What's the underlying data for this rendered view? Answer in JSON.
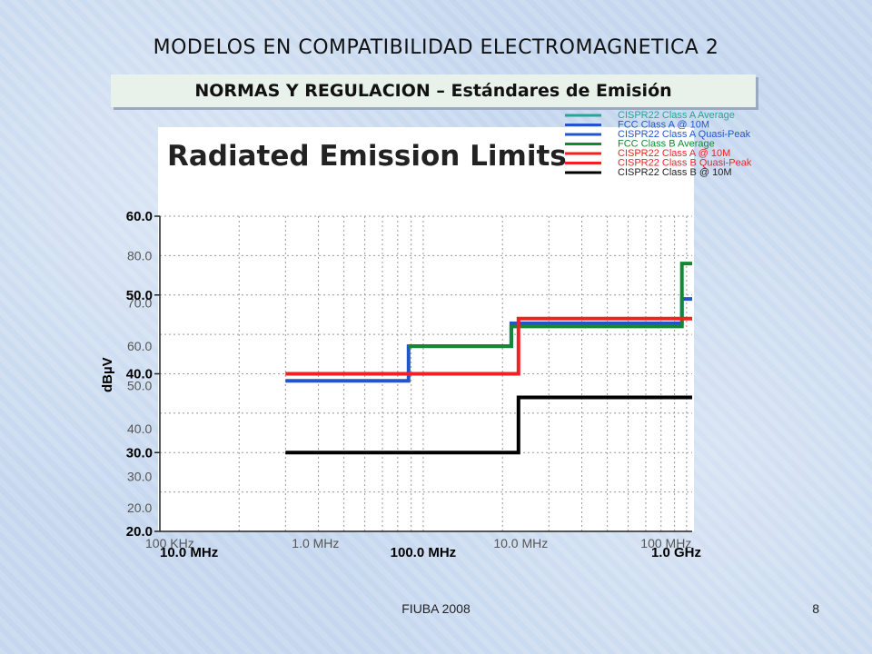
{
  "header": {
    "title": "MODELOS EN COMPATIBILIDAD ELECTROMAGNETICA  2",
    "subtitle": "NORMAS Y REGULACION – Estándares de Emisión"
  },
  "footer": {
    "left": "FIUBA 2008",
    "right": "8"
  },
  "chart_data": {
    "type": "line",
    "title": "Radiated Emission Limits",
    "xlabel": "",
    "ylabel": "dBµV",
    "x_scale": "log",
    "xlim": [
      10,
      1050
    ],
    "ylim": [
      20,
      60
    ],
    "x_ticks": [
      {
        "value": 10,
        "label": "10.0 MHz"
      },
      {
        "value": 100,
        "label": "100.0 MHz"
      },
      {
        "value": 1000,
        "label": "1.0 GHz"
      }
    ],
    "y_ticks": [
      {
        "value": 20,
        "label": "20.0"
      },
      {
        "value": 30,
        "label": "30.0"
      },
      {
        "value": 40,
        "label": "40.0"
      },
      {
        "value": 50,
        "label": "50.0"
      },
      {
        "value": 60,
        "label": "60.0"
      }
    ],
    "ghost_x_ticks": [
      {
        "value": 10,
        "label": "100 KHz"
      },
      {
        "value": 36,
        "label": "1.0 MHz"
      },
      {
        "value": 210,
        "label": "10.0 MHz"
      },
      {
        "value": 760,
        "label": "100 MHz"
      }
    ],
    "ghost_y_ticks": [
      {
        "value": 55,
        "label": "80.0"
      },
      {
        "value": 49,
        "label": "70.0"
      },
      {
        "value": 43.5,
        "label": "60.0"
      },
      {
        "value": 38.5,
        "label": "50.0"
      },
      {
        "value": 33,
        "label": "40.0"
      },
      {
        "value": 27,
        "label": "30.0"
      },
      {
        "value": 23,
        "label": "20.0"
      }
    ],
    "grid": true,
    "legend_position": "top-right",
    "legend": [
      {
        "label": "CISPR22 Class A Average",
        "color": "#2aa39a"
      },
      {
        "label": "FCC Class A @ 10M",
        "color": "#2255cc"
      },
      {
        "label": "CISPR22 Class A Quasi-Peak",
        "color": "#2255cc"
      },
      {
        "label": "FCC Class B Average",
        "color": "#118833"
      },
      {
        "label": "CISPR22 Class A @ 10M",
        "color": "#ee2222"
      },
      {
        "label": "CISPR22 Class B Quasi-Peak",
        "color": "#ee2222"
      },
      {
        "label": "CISPR22 Class B @ 10M",
        "color": "#000000"
      }
    ],
    "series": [
      {
        "color": "#2255cc",
        "x": [
          30,
          88,
          88,
          216,
          216,
          960,
          960,
          1050
        ],
        "y": [
          39.1,
          39.1,
          43.5,
          43.5,
          46.4,
          46.4,
          49.5,
          49.5
        ]
      },
      {
        "color": "#118833",
        "x": [
          88,
          216,
          216,
          960,
          960,
          1050
        ],
        "y": [
          43.5,
          43.5,
          46.0,
          46.0,
          54.0,
          54.0
        ]
      },
      {
        "color": "#ee2222",
        "x": [
          30,
          230,
          230,
          960,
          960,
          1050
        ],
        "y": [
          40.0,
          40.0,
          47.0,
          47.0,
          47.0,
          47.0
        ]
      },
      {
        "color": "#000000",
        "x": [
          30,
          230,
          230,
          1050
        ],
        "y": [
          30.0,
          30.0,
          37.0,
          37.0
        ]
      }
    ]
  }
}
